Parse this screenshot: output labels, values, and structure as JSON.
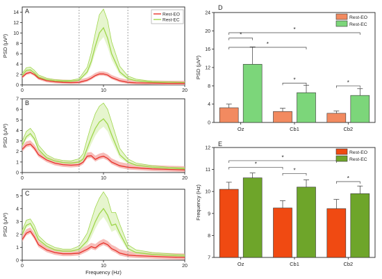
{
  "colors": {
    "eo_line": "#e8322b",
    "eo_band": "#f4a6a0",
    "ec_line": "#9ed64a",
    "ec_band": "#d8efb4",
    "d_eo_bar": "#f28a60",
    "d_ec_bar": "#7cd67a",
    "e_eo_bar": "#f04a12",
    "e_ec_bar": "#6ea52a",
    "axis": "#222222",
    "dashed": "#888888"
  },
  "chart_data": [
    {
      "panel": "A",
      "type": "line",
      "xlabel": "",
      "ylabel": "PSD (μV²)",
      "xlim": [
        0,
        20
      ],
      "ylim": [
        0,
        15
      ],
      "xticks": [
        "0",
        "10",
        "20"
      ],
      "yticks": [
        "0",
        "2",
        "4",
        "6",
        "8",
        "10",
        "12",
        "14"
      ],
      "vlines": [
        7,
        13
      ],
      "legend_position": "top-right",
      "x": [
        0,
        0.5,
        1,
        1.5,
        2,
        3,
        4,
        5,
        6,
        7,
        8,
        8.5,
        9,
        9.5,
        10,
        10.5,
        11,
        12,
        13,
        14,
        16,
        18,
        20
      ],
      "series": [
        {
          "name": "Rest-EO",
          "values": [
            1.5,
            2.2,
            2.4,
            2.0,
            1.3,
            0.8,
            0.6,
            0.5,
            0.45,
            0.5,
            0.9,
            1.3,
            1.8,
            2.1,
            2.1,
            1.9,
            1.4,
            0.8,
            0.5,
            0.4,
            0.35,
            0.3,
            0.3
          ],
          "band": 0.5
        },
        {
          "name": "Rest-EC",
          "values": [
            1.8,
            2.8,
            2.9,
            2.3,
            1.5,
            1.0,
            0.8,
            0.7,
            0.7,
            0.9,
            2.5,
            4.5,
            7.5,
            10.0,
            11.0,
            9.0,
            6.0,
            2.5,
            1.2,
            0.8,
            0.5,
            0.4,
            0.4
          ],
          "band_top": [
            2.2,
            3.3,
            3.4,
            2.8,
            1.9,
            1.3,
            1.0,
            0.9,
            0.9,
            1.2,
            3.4,
            6.2,
            10.0,
            13.5,
            14.6,
            12.4,
            8.3,
            3.6,
            1.7,
            1.1,
            0.7,
            0.6,
            0.5
          ]
        }
      ]
    },
    {
      "panel": "B",
      "type": "line",
      "xlabel": "",
      "ylabel": "PSD (μV²)",
      "xlim": [
        0,
        20
      ],
      "ylim": [
        0,
        7
      ],
      "xticks": [
        "0",
        "10",
        "20"
      ],
      "yticks": [
        "0",
        "1",
        "2",
        "3",
        "4",
        "5",
        "6",
        "7"
      ],
      "vlines": [
        7,
        13
      ],
      "x": [
        0,
        0.5,
        1,
        1.5,
        2,
        3,
        4,
        5,
        6,
        7,
        7.5,
        8,
        8.5,
        9,
        9.5,
        10,
        10.5,
        11,
        12,
        13,
        14,
        16,
        18,
        20
      ],
      "series": [
        {
          "name": "Rest-EO",
          "values": [
            2.2,
            2.6,
            2.7,
            2.3,
            1.7,
            1.2,
            0.9,
            0.75,
            0.7,
            0.75,
            1.0,
            1.55,
            1.6,
            1.25,
            1.45,
            1.55,
            1.35,
            1.0,
            0.65,
            0.5,
            0.45,
            0.35,
            0.3,
            0.25
          ],
          "band": 0.35
        },
        {
          "name": "Rest-EC",
          "values": [
            2.6,
            3.4,
            3.7,
            3.2,
            2.2,
            1.4,
            1.1,
            0.95,
            0.9,
            1.0,
            1.3,
            2.3,
            3.3,
            4.2,
            4.8,
            5.1,
            4.6,
            3.6,
            1.7,
            1.0,
            0.7,
            0.5,
            0.4,
            0.35
          ],
          "band_top": [
            3.0,
            3.9,
            4.2,
            3.7,
            2.6,
            1.7,
            1.3,
            1.15,
            1.1,
            1.3,
            1.8,
            3.2,
            4.5,
            5.6,
            6.3,
            6.6,
            6.0,
            4.8,
            2.3,
            1.3,
            0.9,
            0.65,
            0.5,
            0.45
          ]
        }
      ]
    },
    {
      "panel": "C",
      "type": "line",
      "xlabel": "Frequency (Hz)",
      "ylabel": "PSD (μV²)",
      "xlim": [
        0,
        20
      ],
      "ylim": [
        0,
        5.5
      ],
      "xticks": [
        "0",
        "10",
        "20"
      ],
      "yticks": [
        "0",
        "1",
        "2",
        "3",
        "4",
        "5"
      ],
      "vlines": [
        7,
        13
      ],
      "x": [
        0,
        0.5,
        1,
        1.5,
        2,
        3,
        4,
        5,
        6,
        7,
        8,
        8.5,
        9,
        9.5,
        10,
        10.5,
        11,
        11.5,
        12,
        13,
        14,
        16,
        18,
        20
      ],
      "series": [
        {
          "name": "Rest-EO",
          "values": [
            1.6,
            2.1,
            2.25,
            1.8,
            1.2,
            0.8,
            0.6,
            0.5,
            0.5,
            0.55,
            0.85,
            1.05,
            0.95,
            1.2,
            1.35,
            1.2,
            0.9,
            0.75,
            0.55,
            0.4,
            0.35,
            0.3,
            0.25,
            0.22
          ],
          "band": 0.3
        },
        {
          "name": "Rest-EC",
          "values": [
            2.0,
            2.7,
            2.85,
            2.3,
            1.6,
            1.1,
            0.8,
            0.7,
            0.7,
            0.85,
            1.5,
            2.2,
            3.0,
            3.6,
            4.0,
            3.5,
            2.7,
            2.8,
            2.1,
            0.9,
            0.6,
            0.45,
            0.38,
            0.32
          ],
          "band_top": [
            2.3,
            3.1,
            3.2,
            2.7,
            1.9,
            1.3,
            1.0,
            0.85,
            0.85,
            1.1,
            2.1,
            3.1,
            4.1,
            4.8,
            5.3,
            4.8,
            3.7,
            3.7,
            2.8,
            1.2,
            0.8,
            0.6,
            0.5,
            0.42
          ]
        }
      ]
    },
    {
      "panel": "D",
      "type": "bar",
      "ylabel": "PSD (μV²)",
      "ylim": [
        0,
        24
      ],
      "yticks": [
        "0",
        "4",
        "8",
        "12",
        "16",
        "20",
        "24"
      ],
      "categories": [
        "Oz",
        "Cb1",
        "Cb2"
      ],
      "legend_position": "top-right",
      "series": [
        {
          "name": "Rest-EO",
          "values": [
            3.2,
            2.4,
            2.0
          ],
          "errors": [
            0.8,
            0.7,
            0.5
          ]
        },
        {
          "name": "Rest-EC",
          "values": [
            12.7,
            6.5,
            5.9
          ],
          "errors": [
            3.8,
            1.6,
            1.5
          ]
        }
      ],
      "significance": [
        "*",
        "*",
        "*",
        "*",
        "*"
      ]
    },
    {
      "panel": "E",
      "type": "bar",
      "ylabel": "Frequency (Hz)",
      "ylim": [
        7,
        12
      ],
      "yticks": [
        "7",
        "8",
        "9",
        "10",
        "11",
        "12"
      ],
      "categories": [
        "Oz",
        "Cb1",
        "Cb2"
      ],
      "legend_position": "top-right",
      "series": [
        {
          "name": "Rest-EO",
          "values": [
            10.1,
            9.25,
            9.22
          ],
          "errors": [
            0.32,
            0.33,
            0.42
          ]
        },
        {
          "name": "Rest-EC",
          "values": [
            10.62,
            10.2,
            9.9
          ],
          "errors": [
            0.22,
            0.33,
            0.35
          ]
        }
      ],
      "significance": [
        "*",
        "*",
        "*",
        "*"
      ]
    }
  ]
}
